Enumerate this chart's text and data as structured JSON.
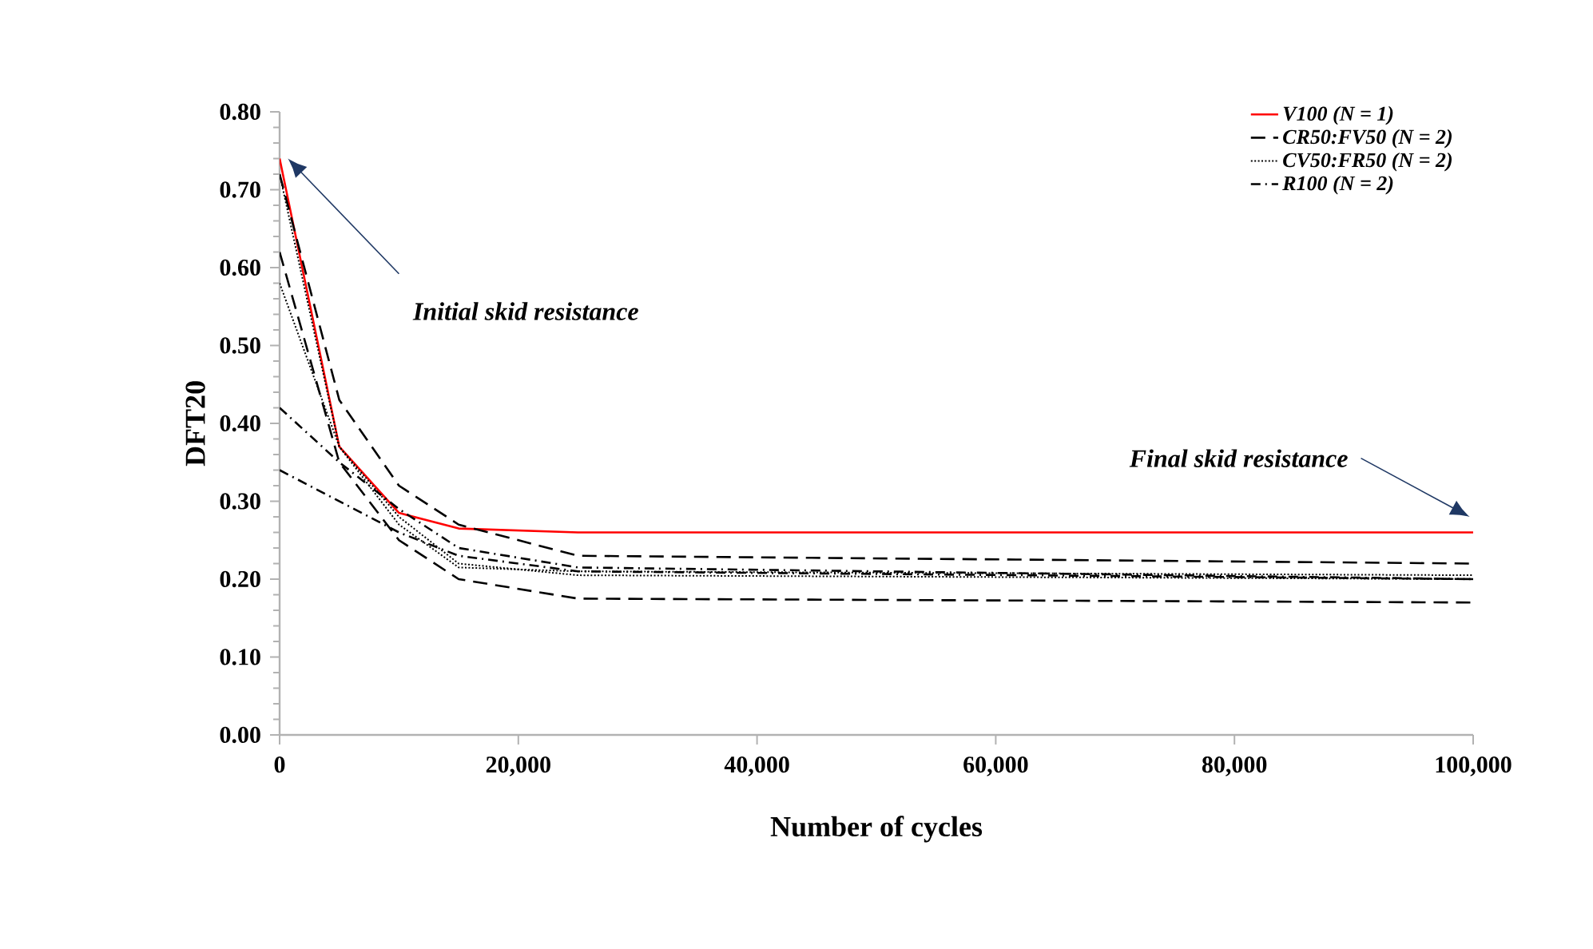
{
  "chart_data": {
    "type": "line",
    "xlabel": "Number of cycles",
    "ylabel": "DFT20",
    "x": [
      0,
      5000,
      10000,
      15000,
      25000,
      100000
    ],
    "series": [
      {
        "name": "*V100 (N = 1)*",
        "color": "#ff0000",
        "line_style": "solid",
        "values": [
          0.74,
          0.37,
          0.285,
          0.265,
          0.26,
          0.26
        ]
      },
      {
        "name": "*CR50:FV50 (N = 2)*",
        "color": "#000000",
        "line_style": "dashed",
        "values": [
          0.72,
          0.43,
          0.32,
          0.27,
          0.23,
          0.22
        ]
      },
      {
        "color": "#000000",
        "line_style": "dashed",
        "values": [
          0.62,
          0.35,
          0.25,
          0.2,
          0.175,
          0.17
        ]
      },
      {
        "name": "*CV50:FR50 (N = 2)*",
        "color": "#000000",
        "line_style": "dotted",
        "values": [
          0.58,
          0.37,
          0.28,
          0.22,
          0.205,
          0.2
        ]
      },
      {
        "color": "#000000",
        "line_style": "dotted",
        "values": [
          0.72,
          0.37,
          0.27,
          0.215,
          0.21,
          0.205
        ]
      },
      {
        "name": "*R100 (N = 2)*",
        "color": "#000000",
        "line_style": "dashdot",
        "values": [
          0.42,
          0.35,
          0.29,
          0.24,
          0.215,
          0.2
        ]
      },
      {
        "color": "#000000",
        "line_style": "dashdot",
        "values": [
          0.34,
          0.3,
          0.26,
          0.23,
          0.21,
          0.2
        ]
      }
    ],
    "xlim": [
      0,
      100000
    ],
    "ylim": [
      0,
      0.8
    ],
    "xticks": [
      {
        "value": 0,
        "label": "0"
      },
      {
        "value": 20000,
        "label": "20,000"
      },
      {
        "value": 40000,
        "label": "40,000"
      },
      {
        "value": 60000,
        "label": "60,000"
      },
      {
        "value": 80000,
        "label": "80,000"
      },
      {
        "value": 100000,
        "label": "100,000"
      }
    ],
    "yticks": [
      {
        "value": 0,
        "label": "0.00"
      },
      {
        "value": 0.1,
        "label": "0.10"
      },
      {
        "value": 0.2,
        "label": "0.20"
      },
      {
        "value": 0.3,
        "label": "0.30"
      },
      {
        "value": 0.4,
        "label": "0.40"
      },
      {
        "value": 0.5,
        "label": "0.50"
      },
      {
        "value": 0.6,
        "label": "0.60"
      },
      {
        "value": 0.7,
        "label": "0.70"
      },
      {
        "value": 0.8,
        "label": "0.80"
      }
    ],
    "annotations": [
      "*Initial skid resistance*",
      "*Final skid resistance*"
    ],
    "legend": "top right",
    "grid": false,
    "marker": "none"
  }
}
